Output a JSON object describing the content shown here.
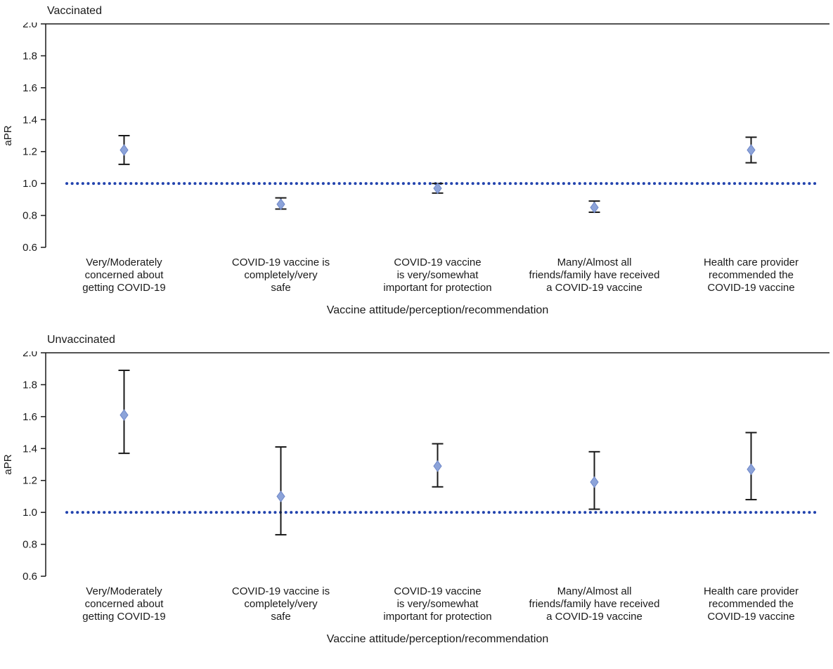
{
  "colors": {
    "marker_fill": "#8CA3D9",
    "marker_stroke": "#6E87C8",
    "error_bar": "#1a1a1a",
    "reference_line": "#2344AE",
    "axis": "#1a1a1a"
  },
  "chart_data": [
    {
      "type": "scatter",
      "title": "Vaccinated",
      "xlabel": "Vaccine attitude/perception/recommendation",
      "ylabel": "aPR",
      "ylim": [
        0.6,
        2.0
      ],
      "yticks": [
        0.6,
        0.8,
        1.0,
        1.2,
        1.4,
        1.6,
        1.8,
        2.0
      ],
      "reference_line": 1.0,
      "grid": false,
      "legend": false,
      "categories": [
        [
          "Very/Moderately",
          "concerned about",
          "getting COVID-19"
        ],
        [
          "COVID-19 vaccine is",
          "completely/very",
          "safe"
        ],
        [
          "COVID-19 vaccine",
          "is very/somewhat",
          "important for protection"
        ],
        [
          "Many/Almost all",
          "friends/family have received",
          "a COVID-19 vaccine"
        ],
        [
          "Health care provider",
          "recommended the",
          "COVID-19 vaccine"
        ]
      ],
      "points": [
        {
          "aPR": 1.21,
          "ci_low": 1.12,
          "ci_high": 1.3
        },
        {
          "aPR": 0.87,
          "ci_low": 0.84,
          "ci_high": 0.91
        },
        {
          "aPR": 0.97,
          "ci_low": 0.94,
          "ci_high": 1.0
        },
        {
          "aPR": 0.85,
          "ci_low": 0.82,
          "ci_high": 0.89
        },
        {
          "aPR": 1.21,
          "ci_low": 1.13,
          "ci_high": 1.29
        }
      ]
    },
    {
      "type": "scatter",
      "title": "Unvaccinated",
      "xlabel": "Vaccine attitude/perception/recommendation",
      "ylabel": "aPR",
      "ylim": [
        0.6,
        2.0
      ],
      "yticks": [
        0.6,
        0.8,
        1.0,
        1.2,
        1.4,
        1.6,
        1.8,
        2.0
      ],
      "reference_line": 1.0,
      "grid": false,
      "legend": false,
      "categories": [
        [
          "Very/Moderately",
          "concerned about",
          "getting COVID-19"
        ],
        [
          "COVID-19 vaccine is",
          "completely/very",
          "safe"
        ],
        [
          "COVID-19 vaccine",
          "is very/somewhat",
          "important for protection"
        ],
        [
          "Many/Almost all",
          "friends/family have received",
          "a COVID-19 vaccine"
        ],
        [
          "Health care provider",
          "recommended the",
          "COVID-19 vaccine"
        ]
      ],
      "points": [
        {
          "aPR": 1.61,
          "ci_low": 1.37,
          "ci_high": 1.89
        },
        {
          "aPR": 1.1,
          "ci_low": 0.86,
          "ci_high": 1.41
        },
        {
          "aPR": 1.29,
          "ci_low": 1.16,
          "ci_high": 1.43
        },
        {
          "aPR": 1.19,
          "ci_low": 1.02,
          "ci_high": 1.38
        },
        {
          "aPR": 1.27,
          "ci_low": 1.08,
          "ci_high": 1.5
        }
      ]
    }
  ]
}
